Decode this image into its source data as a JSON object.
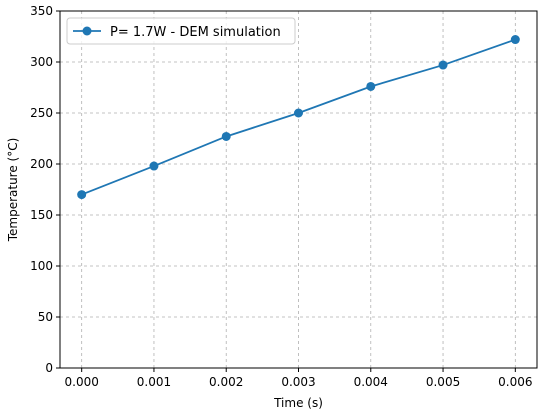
{
  "chart_data": {
    "type": "line",
    "title": "",
    "xlabel": "Time (s)",
    "ylabel": "Temperature (°C)",
    "xlim": [
      -0.0003,
      0.0063
    ],
    "ylim": [
      0,
      350
    ],
    "x_ticks": [
      0.0,
      0.001,
      0.002,
      0.003,
      0.004,
      0.005,
      0.006
    ],
    "x_tick_labels": [
      "0.000",
      "0.001",
      "0.002",
      "0.003",
      "0.004",
      "0.005",
      "0.006"
    ],
    "y_ticks": [
      0,
      50,
      100,
      150,
      200,
      250,
      300,
      350
    ],
    "y_tick_labels": [
      "0",
      "50",
      "100",
      "150",
      "200",
      "250",
      "300",
      "350"
    ],
    "grid": true,
    "legend_position": "top-left",
    "series": [
      {
        "name": "P= 1.7W - DEM simulation",
        "color": "#1f77b4",
        "marker": "circle",
        "x": [
          0.0,
          0.001,
          0.002,
          0.003,
          0.004,
          0.005,
          0.006
        ],
        "y": [
          170,
          198,
          227,
          250,
          276,
          297,
          322
        ]
      }
    ]
  }
}
